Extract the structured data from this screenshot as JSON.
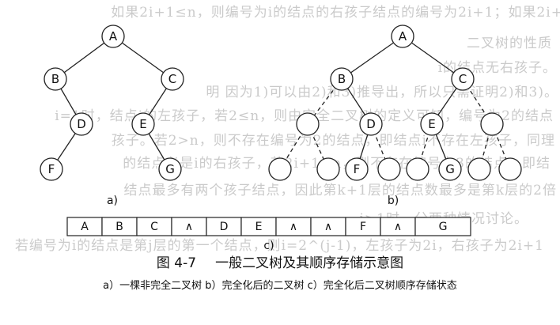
{
  "bleed_lines": [
    "如果2i+1≤n，则编号为i的结点的右孩子结点的编号为2i+1；如果2i+",
    "二叉树的性质",
    "i的结点无右孩子。",
    "明  因为1)可以由2)和3)推导出，所以只需证明2)和3)。",
    "i=1时，结点i的左孩子，若2≤n，则由完全二叉树的定义可知，编号为2的结点",
    "孩子。若2>n，则不存在编号为2的结点，即结点i不存在左孩子，同理",
    "的结点必是i的右孩子，若2i+1>n，则不存在编号为3的结点，即结",
    "结点最多有两个孩子结点，因此第k+1层的结点数最多是第k层的2倍",
    "i>1时，分两种情况讨论。",
    "若编号为i的结点是第j层的第一个结点，则i=2^(j-1)，左孩子为2i，右孩子为2i+1"
  ],
  "figure": {
    "panels": {
      "a": {
        "label": "a)",
        "nodes": [
          "A",
          "B",
          "C",
          "D",
          "E",
          "F",
          "G"
        ]
      },
      "b": {
        "label": "b)",
        "nodes": [
          "A",
          "B",
          "C",
          "D",
          "E",
          "F",
          "G"
        ]
      },
      "c": {
        "label": "c)",
        "cells": [
          "A",
          "B",
          "C",
          "∧",
          "D",
          "E",
          "∧",
          "∧",
          "F",
          "∧",
          "G"
        ]
      }
    },
    "caption": {
      "number": "图 4-7",
      "title": "一般二叉树及其顺序存储示意图",
      "subcaption": "a）一棵非完全二叉树  b）完全化后的二叉树  c）完全化后二叉树顺序存储状态"
    }
  }
}
